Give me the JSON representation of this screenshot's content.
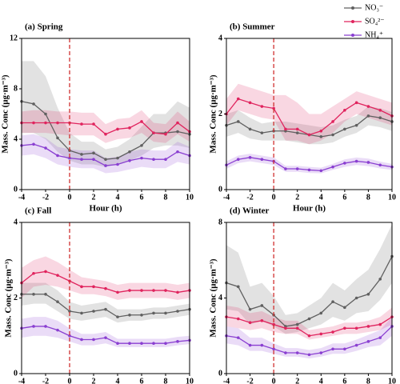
{
  "chart_data": [
    {
      "type": "line",
      "title": "(a) Spring",
      "xlabel": "Hour (h)",
      "ylabel": "Mass. Conc (μg·m⁻³)",
      "xlim": [
        -4,
        10
      ],
      "ylim": [
        0,
        12
      ],
      "xticks": [
        -4,
        -2,
        0,
        2,
        4,
        6,
        8,
        10
      ],
      "yticks": [
        0,
        4,
        8,
        12
      ],
      "reference_x": 0,
      "x": [
        -4,
        -3,
        -2,
        -1,
        0,
        1,
        2,
        3,
        4,
        5,
        6,
        7,
        8,
        9,
        10
      ],
      "series": [
        {
          "color": "#606060",
          "values": [
            7.0,
            6.8,
            6.0,
            4.1,
            3.1,
            2.8,
            2.9,
            2.4,
            2.5,
            3.0,
            3.5,
            4.5,
            4.5,
            4.6,
            4.4
          ],
          "lower": [
            4.5,
            4.5,
            4.0,
            3.0,
            2.3,
            2.0,
            2.0,
            1.8,
            2.0,
            2.3,
            2.7,
            3.3,
            3.5,
            3.5,
            3.3
          ],
          "upper": [
            10.2,
            10.2,
            9.0,
            6.5,
            4.5,
            3.8,
            3.8,
            3.2,
            3.4,
            4.0,
            5.0,
            6.0,
            6.0,
            7.0,
            6.5
          ]
        },
        {
          "color": "#e0245e",
          "values": [
            5.3,
            5.3,
            5.3,
            5.3,
            5.3,
            5.2,
            5.2,
            4.4,
            4.8,
            4.9,
            5.4,
            4.5,
            4.4,
            5.3,
            4.6
          ],
          "lower": [
            4.5,
            4.5,
            4.5,
            4.4,
            4.3,
            4.3,
            4.3,
            3.7,
            4.0,
            4.1,
            4.5,
            3.8,
            3.7,
            4.4,
            3.8
          ],
          "upper": [
            6.2,
            6.3,
            6.3,
            6.2,
            6.2,
            6.1,
            6.1,
            5.2,
            5.6,
            5.7,
            6.3,
            5.3,
            5.2,
            6.2,
            5.4
          ]
        },
        {
          "color": "#8a3fd1",
          "values": [
            3.5,
            3.6,
            3.3,
            2.7,
            2.5,
            2.4,
            2.4,
            1.9,
            2.0,
            2.3,
            2.5,
            2.4,
            2.4,
            3.0,
            2.7
          ],
          "lower": [
            2.7,
            2.8,
            2.5,
            2.0,
            1.8,
            1.7,
            1.7,
            1.3,
            1.4,
            1.6,
            1.8,
            1.7,
            1.7,
            2.2,
            2.0
          ],
          "upper": [
            4.3,
            4.4,
            4.1,
            3.4,
            3.2,
            3.1,
            3.1,
            2.5,
            2.6,
            3.0,
            3.2,
            3.1,
            3.1,
            3.8,
            3.4
          ]
        }
      ]
    },
    {
      "type": "line",
      "title": "(b) Summer",
      "xlabel": "Hour (h)",
      "ylabel": "Mass. Conc (μg·m⁻³)",
      "xlim": [
        -4,
        10
      ],
      "ylim": [
        0,
        4
      ],
      "xticks": [
        -4,
        -2,
        0,
        2,
        4,
        6,
        8,
        10
      ],
      "yticks": [
        0,
        2,
        4
      ],
      "reference_x": 0,
      "legend": "upper right",
      "x": [
        -4,
        -3,
        -2,
        -1,
        0,
        1,
        2,
        3,
        4,
        5,
        6,
        7,
        8,
        9,
        10
      ],
      "series": [
        {
          "name": "NO₃⁻",
          "color": "#606060",
          "values": [
            1.7,
            1.8,
            1.6,
            1.5,
            1.55,
            1.55,
            1.5,
            1.45,
            1.4,
            1.45,
            1.6,
            1.7,
            1.95,
            1.9,
            1.8
          ],
          "lower": [
            1.4,
            1.5,
            1.35,
            1.3,
            1.3,
            1.3,
            1.25,
            1.2,
            1.2,
            1.25,
            1.4,
            1.5,
            1.7,
            1.65,
            1.55
          ],
          "upper": [
            2.0,
            2.1,
            1.9,
            1.75,
            1.8,
            1.8,
            1.75,
            1.7,
            1.65,
            1.7,
            1.85,
            1.95,
            2.2,
            2.15,
            2.05
          ]
        },
        {
          "name": "SO₄²⁻",
          "color": "#e0245e",
          "values": [
            2.0,
            2.4,
            2.3,
            2.2,
            2.15,
            1.6,
            1.6,
            1.45,
            1.55,
            1.8,
            2.1,
            2.3,
            2.2,
            2.1,
            1.95
          ],
          "lower": [
            1.7,
            2.1,
            2.0,
            1.9,
            1.85,
            1.3,
            1.3,
            1.2,
            1.3,
            1.5,
            1.8,
            2.0,
            1.9,
            1.8,
            1.7
          ],
          "upper": [
            2.4,
            2.8,
            2.7,
            2.6,
            2.5,
            2.5,
            2.3,
            2.0,
            2.0,
            2.2,
            2.4,
            2.6,
            2.5,
            2.4,
            2.3
          ]
        },
        {
          "name": "NH₄⁺",
          "color": "#8a3fd1",
          "values": [
            0.65,
            0.8,
            0.85,
            0.8,
            0.75,
            0.55,
            0.55,
            0.52,
            0.5,
            0.6,
            0.7,
            0.75,
            0.72,
            0.65,
            0.6
          ],
          "lower": [
            0.55,
            0.7,
            0.75,
            0.7,
            0.65,
            0.47,
            0.47,
            0.44,
            0.43,
            0.52,
            0.6,
            0.65,
            0.62,
            0.56,
            0.52
          ],
          "upper": [
            0.75,
            0.9,
            0.95,
            0.9,
            0.85,
            0.63,
            0.63,
            0.6,
            0.58,
            0.68,
            0.8,
            0.85,
            0.82,
            0.74,
            0.68
          ]
        }
      ]
    },
    {
      "type": "line",
      "title": "(c) Fall",
      "xlabel": "Hour (h)",
      "ylabel": "Mass. Conc (μg·m⁻³)",
      "xlim": [
        -4,
        10
      ],
      "ylim": [
        0,
        4
      ],
      "xticks": [
        -4,
        -2,
        0,
        2,
        4,
        6,
        8,
        10
      ],
      "yticks": [
        0,
        2,
        4
      ],
      "reference_x": 0,
      "x": [
        -4,
        -3,
        -2,
        -1,
        0,
        1,
        2,
        3,
        4,
        5,
        6,
        7,
        8,
        9,
        10
      ],
      "series": [
        {
          "color": "#606060",
          "values": [
            2.1,
            2.1,
            2.1,
            1.9,
            1.65,
            1.6,
            1.65,
            1.7,
            1.5,
            1.55,
            1.55,
            1.6,
            1.6,
            1.65,
            1.7
          ],
          "lower": [
            1.8,
            1.85,
            1.85,
            1.65,
            1.45,
            1.4,
            1.45,
            1.5,
            1.35,
            1.4,
            1.4,
            1.45,
            1.45,
            1.5,
            1.55
          ],
          "upper": [
            2.4,
            2.4,
            2.4,
            2.2,
            1.9,
            1.8,
            1.85,
            1.9,
            1.7,
            1.7,
            1.7,
            1.75,
            1.75,
            1.8,
            1.85
          ]
        },
        {
          "color": "#e0245e",
          "values": [
            2.4,
            2.65,
            2.7,
            2.6,
            2.45,
            2.3,
            2.3,
            2.25,
            2.15,
            2.2,
            2.2,
            2.2,
            2.2,
            2.15,
            2.2
          ],
          "lower": [
            2.0,
            2.3,
            2.35,
            2.3,
            2.2,
            2.1,
            2.1,
            2.05,
            1.95,
            2.0,
            2.0,
            2.0,
            2.0,
            1.95,
            2.0
          ],
          "upper": [
            2.8,
            3.0,
            3.1,
            2.95,
            2.75,
            2.55,
            2.5,
            2.45,
            2.35,
            2.4,
            2.4,
            2.4,
            2.4,
            2.35,
            2.4
          ]
        },
        {
          "color": "#8a3fd1",
          "values": [
            1.2,
            1.25,
            1.25,
            1.15,
            1.0,
            0.9,
            0.9,
            0.95,
            0.8,
            0.8,
            0.8,
            0.8,
            0.8,
            0.85,
            0.88
          ],
          "lower": [
            0.95,
            1.0,
            1.0,
            0.95,
            0.85,
            0.75,
            0.75,
            0.8,
            0.7,
            0.7,
            0.7,
            0.7,
            0.7,
            0.75,
            0.78
          ],
          "upper": [
            1.45,
            1.5,
            1.5,
            1.4,
            1.2,
            1.05,
            1.05,
            1.1,
            0.92,
            0.92,
            0.92,
            0.92,
            0.92,
            0.97,
            1.0
          ]
        }
      ]
    },
    {
      "type": "line",
      "title": "(d) Winter",
      "xlabel": "Hour (h)",
      "ylabel": "Mass. Conc (μg·m⁻³)",
      "xlim": [
        -4,
        10
      ],
      "ylim": [
        0,
        8
      ],
      "xticks": [
        -4,
        -2,
        0,
        2,
        4,
        6,
        8,
        10
      ],
      "yticks": [
        0,
        4,
        8
      ],
      "reference_x": 0,
      "x": [
        -4,
        -3,
        -2,
        -1,
        0,
        1,
        2,
        3,
        4,
        5,
        6,
        7,
        8,
        9,
        10
      ],
      "series": [
        {
          "color": "#606060",
          "values": [
            4.8,
            4.6,
            3.4,
            3.6,
            3.1,
            2.5,
            2.6,
            2.9,
            3.2,
            3.8,
            3.5,
            4.0,
            4.2,
            5.0,
            6.2
          ],
          "lower": [
            3.4,
            3.3,
            2.6,
            2.8,
            2.5,
            2.1,
            2.2,
            2.4,
            2.6,
            3.0,
            2.8,
            3.2,
            3.3,
            3.9,
            4.8
          ],
          "upper": [
            6.8,
            6.4,
            4.6,
            4.8,
            4.1,
            3.1,
            3.2,
            3.6,
            4.0,
            4.8,
            4.4,
            5.0,
            5.5,
            6.6,
            7.9
          ]
        },
        {
          "color": "#e0245e",
          "values": [
            3.0,
            2.9,
            2.7,
            2.8,
            2.6,
            2.4,
            2.4,
            2.0,
            2.1,
            2.2,
            2.4,
            2.4,
            2.5,
            2.6,
            3.0
          ],
          "lower": [
            2.5,
            2.4,
            2.3,
            2.4,
            2.2,
            2.1,
            2.1,
            1.8,
            1.9,
            2.0,
            2.1,
            2.1,
            2.2,
            2.3,
            2.6
          ],
          "upper": [
            3.6,
            3.5,
            3.2,
            3.3,
            3.0,
            2.8,
            2.8,
            2.3,
            2.4,
            2.5,
            2.7,
            2.7,
            2.8,
            3.0,
            3.5
          ]
        },
        {
          "color": "#8a3fd1",
          "values": [
            2.0,
            1.9,
            1.5,
            1.5,
            1.3,
            1.1,
            1.1,
            1.0,
            1.1,
            1.3,
            1.3,
            1.5,
            1.7,
            1.9,
            2.5
          ],
          "lower": [
            1.6,
            1.5,
            1.2,
            1.2,
            1.05,
            0.9,
            0.9,
            0.8,
            0.9,
            1.05,
            1.05,
            1.2,
            1.4,
            1.5,
            2.0
          ],
          "upper": [
            2.5,
            2.4,
            1.9,
            1.9,
            1.6,
            1.35,
            1.35,
            1.25,
            1.35,
            1.6,
            1.6,
            1.8,
            2.05,
            2.3,
            3.0
          ]
        }
      ]
    }
  ]
}
